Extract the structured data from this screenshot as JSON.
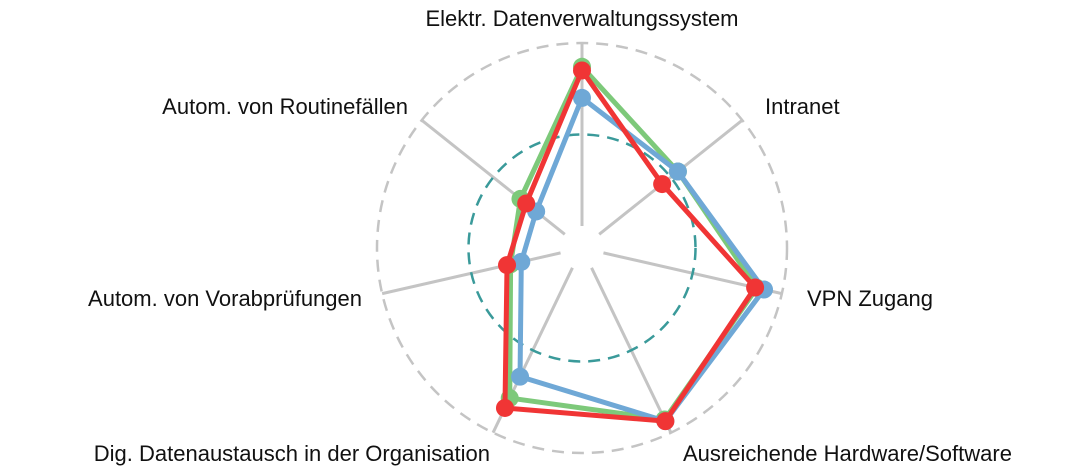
{
  "chart_data": {
    "type": "radar",
    "categories": [
      "Elektr. Datenverwaltungssystem",
      "Intranet",
      "VPN Zugang",
      "Ausreichende Hardware/Software",
      "Dig. Datenaustausch in der Organisation",
      "Autom. von Vorabprüfungen",
      "Autom. von Routinefällen"
    ],
    "series": [
      {
        "color": "#7dc97a",
        "values": [
          87,
          55,
          86,
          92,
          79,
          28,
          31
        ]
      },
      {
        "color": "#6fa8d6",
        "values": [
          70,
          55,
          90,
          93,
          66,
          22,
          20
        ]
      },
      {
        "color": "#f03535",
        "values": [
          85,
          44,
          85,
          93,
          85,
          30,
          27
        ]
      }
    ],
    "rlim": [
      0,
      100
    ],
    "rticks": [
      50,
      100
    ]
  }
}
